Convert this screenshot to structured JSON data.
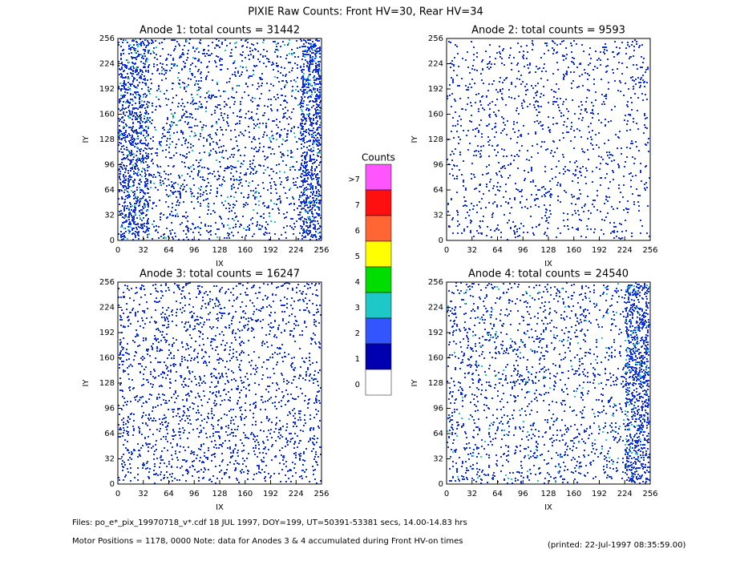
{
  "title": "PIXIE Raw Counts:  Front HV=30, Rear HV=34",
  "chart_data": [
    {
      "type": "heatmap",
      "title": "Anode 1: total counts = 31442",
      "xlabel": "IX",
      "ylabel": "IY",
      "xlim": [
        0,
        256
      ],
      "ylim": [
        0,
        256
      ],
      "xticks": [
        0,
        32,
        64,
        96,
        128,
        160,
        192,
        224,
        256
      ],
      "yticks": [
        0,
        32,
        64,
        96,
        128,
        160,
        192,
        224,
        256
      ]
    },
    {
      "type": "heatmap",
      "title": "Anode 2: total counts = 9593",
      "xlabel": "IX",
      "ylabel": "IY",
      "xlim": [
        0,
        256
      ],
      "ylim": [
        0,
        256
      ],
      "xticks": [
        0,
        32,
        64,
        96,
        128,
        160,
        192,
        224,
        256
      ],
      "yticks": [
        0,
        32,
        64,
        96,
        128,
        160,
        192,
        224,
        256
      ]
    },
    {
      "type": "heatmap",
      "title": "Anode 3: total counts = 16247",
      "xlabel": "IX",
      "ylabel": "IY",
      "xlim": [
        0,
        256
      ],
      "ylim": [
        0,
        256
      ],
      "xticks": [
        0,
        32,
        64,
        96,
        128,
        160,
        192,
        224,
        256
      ],
      "yticks": [
        0,
        32,
        64,
        96,
        128,
        160,
        192,
        224,
        256
      ]
    },
    {
      "type": "heatmap",
      "title": "Anode 4: total counts = 24540",
      "xlabel": "IX",
      "ylabel": "IY",
      "xlim": [
        0,
        256
      ],
      "ylim": [
        0,
        256
      ],
      "xticks": [
        0,
        32,
        64,
        96,
        128,
        160,
        192,
        224,
        256
      ],
      "yticks": [
        0,
        32,
        64,
        96,
        128,
        160,
        192,
        224,
        256
      ]
    }
  ],
  "colorbar": {
    "title": "Counts",
    "labels": [
      ">7",
      "7",
      "6",
      "5",
      "4",
      "3",
      "2",
      "1",
      "0"
    ],
    "colors": [
      "#ff55ff",
      "#ff1010",
      "#ff6633",
      "#ffff00",
      "#00dd00",
      "#1ec8c8",
      "#3355ff",
      "#0000b0",
      "#ffffff"
    ]
  },
  "footer": {
    "files": "Files: po_e*_pix_19970718_v*.cdf    18 JUL 1997, DOY=199, UT=50391-53381 secs, 14.00-14.83 hrs",
    "note": "Motor Positions = 1178, 0000   Note: data for Anodes 3 & 4 accumulated during Front HV-on times",
    "printed": "(printed: 22-Jul-1997 08:35:59.00)"
  }
}
